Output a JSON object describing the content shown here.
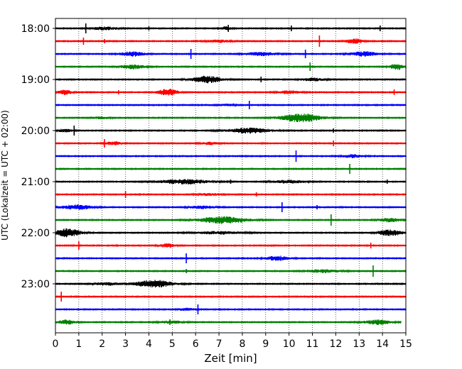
{
  "chart_data": {
    "type": "line",
    "title": "",
    "xlabel": "Zeit  [min]",
    "ylabel": "UTC (Lokalzeit = UTC + 02:00)",
    "xlim": [
      0,
      15
    ],
    "x_ticks": [
      0,
      1,
      2,
      3,
      4,
      5,
      6,
      7,
      8,
      9,
      10,
      11,
      12,
      13,
      14,
      15
    ],
    "x_tick_labels": [
      "0",
      "1",
      "2",
      "3",
      "4",
      "5",
      "6",
      "7",
      "8",
      "9",
      "10",
      "11",
      "12",
      "13",
      "14",
      "15"
    ],
    "y_tick_labels": [
      "18:00",
      "19:00",
      "20:00",
      "21:00",
      "22:00",
      "23:00"
    ],
    "grid": "vertical dotted",
    "colors": [
      "#000000",
      "#ff0000",
      "#0000ff",
      "#008000"
    ],
    "series": [
      {
        "start": "18:00",
        "color": "#000000",
        "end_min": 15,
        "bursts": [
          {
            "at": 2.1,
            "width": 1.6,
            "amp": 0.35
          },
          {
            "at": 7.3,
            "width": 0.6,
            "amp": 0.4
          }
        ],
        "spikes": [
          {
            "at": 1.3,
            "amp": 7
          },
          {
            "at": 4.0,
            "amp": 3
          },
          {
            "at": 7.4,
            "amp": 5
          },
          {
            "at": 10.1,
            "amp": 4
          },
          {
            "at": 13.9,
            "amp": 4
          }
        ]
      },
      {
        "start": "18:15",
        "color": "#ff0000",
        "end_min": 15,
        "bursts": [
          {
            "at": 7.0,
            "width": 1.4,
            "amp": 0.3
          },
          {
            "at": 12.8,
            "width": 1.0,
            "amp": 0.6
          }
        ],
        "spikes": [
          {
            "at": 1.2,
            "amp": 5
          },
          {
            "at": 2.1,
            "amp": 3
          },
          {
            "at": 11.3,
            "amp": 8
          }
        ]
      },
      {
        "start": "18:30",
        "color": "#0000ff",
        "end_min": 15,
        "bursts": [
          {
            "at": 3.3,
            "width": 1.4,
            "amp": 0.55
          },
          {
            "at": 8.8,
            "width": 1.8,
            "amp": 0.45
          },
          {
            "at": 13.2,
            "width": 1.6,
            "amp": 0.55
          }
        ],
        "spikes": [
          {
            "at": 5.8,
            "amp": 7
          },
          {
            "at": 10.7,
            "amp": 6
          }
        ]
      },
      {
        "start": "18:45",
        "color": "#008000",
        "end_min": 15,
        "bursts": [
          {
            "at": 3.3,
            "width": 1.4,
            "amp": 0.5
          },
          {
            "at": 14.6,
            "width": 0.8,
            "amp": 0.7
          }
        ],
        "spikes": [
          {
            "at": 10.9,
            "amp": 6
          }
        ]
      },
      {
        "start": "19:00",
        "color": "#000000",
        "end_min": 15,
        "bursts": [
          {
            "at": 6.5,
            "width": 1.8,
            "amp": 0.8
          },
          {
            "at": 11.0,
            "width": 1.4,
            "amp": 0.35
          }
        ],
        "spikes": [
          {
            "at": 8.8,
            "amp": 4
          }
        ]
      },
      {
        "start": "19:15",
        "color": "#ff0000",
        "end_min": 15,
        "bursts": [
          {
            "at": 0.4,
            "width": 0.8,
            "amp": 0.55
          },
          {
            "at": 4.8,
            "width": 1.2,
            "amp": 0.8
          },
          {
            "at": 10.0,
            "width": 1.4,
            "amp": 0.35
          }
        ],
        "spikes": [
          {
            "at": 2.7,
            "amp": 3
          },
          {
            "at": 14.5,
            "amp": 4
          }
        ]
      },
      {
        "start": "19:30",
        "color": "#0000ff",
        "end_min": 15,
        "bursts": [
          {
            "at": 7.3,
            "width": 1.0,
            "amp": 0.25
          }
        ],
        "spikes": [
          {
            "at": 8.3,
            "amp": 6
          }
        ]
      },
      {
        "start": "19:45",
        "color": "#008000",
        "end_min": 15,
        "bursts": [
          {
            "at": 10.5,
            "width": 2.4,
            "amp": 1.0
          },
          {
            "at": 2.0,
            "width": 1.0,
            "amp": 0.25
          }
        ],
        "spikes": []
      },
      {
        "start": "20:00",
        "color": "#000000",
        "end_min": 15,
        "bursts": [
          {
            "at": 8.3,
            "width": 2.6,
            "amp": 0.6
          },
          {
            "at": 0.4,
            "width": 0.8,
            "amp": 0.4
          }
        ],
        "spikes": [
          {
            "at": 0.8,
            "amp": 7
          },
          {
            "at": 11.9,
            "amp": 3
          }
        ]
      },
      {
        "start": "20:15",
        "color": "#ff0000",
        "end_min": 15,
        "bursts": [
          {
            "at": 2.5,
            "width": 1.0,
            "amp": 0.45
          },
          {
            "at": 6.6,
            "width": 1.0,
            "amp": 0.3
          }
        ],
        "spikes": [
          {
            "at": 2.1,
            "amp": 6
          },
          {
            "at": 11.9,
            "amp": 4
          }
        ]
      },
      {
        "start": "20:30",
        "color": "#0000ff",
        "end_min": 15,
        "bursts": [
          {
            "at": 12.7,
            "width": 1.2,
            "amp": 0.35
          }
        ],
        "spikes": [
          {
            "at": 10.3,
            "amp": 8
          }
        ]
      },
      {
        "start": "20:45",
        "color": "#008000",
        "end_min": 15,
        "bursts": [],
        "spikes": [
          {
            "at": 12.6,
            "amp": 7
          }
        ]
      },
      {
        "start": "21:00",
        "color": "#000000",
        "end_min": 15,
        "bursts": [
          {
            "at": 5.5,
            "width": 3.0,
            "amp": 0.55
          },
          {
            "at": 10.0,
            "width": 2.0,
            "amp": 0.35
          }
        ],
        "spikes": [
          {
            "at": 7.5,
            "amp": 3
          },
          {
            "at": 14.2,
            "amp": 3
          }
        ]
      },
      {
        "start": "21:15",
        "color": "#ff0000",
        "end_min": 15,
        "bursts": [
          {
            "at": 6.6,
            "width": 1.4,
            "amp": 0.25
          }
        ],
        "spikes": [
          {
            "at": 3.0,
            "amp": 5
          },
          {
            "at": 8.6,
            "amp": 3
          }
        ]
      },
      {
        "start": "21:30",
        "color": "#0000ff",
        "end_min": 15,
        "bursts": [
          {
            "at": 0.9,
            "width": 1.8,
            "amp": 0.55
          },
          {
            "at": 6.3,
            "width": 1.6,
            "amp": 0.3
          }
        ],
        "spikes": [
          {
            "at": 9.7,
            "amp": 7
          },
          {
            "at": 11.2,
            "amp": 3
          }
        ]
      },
      {
        "start": "21:45",
        "color": "#008000",
        "end_min": 15,
        "bursts": [
          {
            "at": 7.2,
            "width": 2.8,
            "amp": 0.85
          },
          {
            "at": 14.3,
            "width": 1.2,
            "amp": 0.45
          }
        ],
        "spikes": [
          {
            "at": 11.8,
            "amp": 8
          }
        ]
      },
      {
        "start": "22:00",
        "color": "#000000",
        "end_min": 15,
        "bursts": [
          {
            "at": 0.5,
            "width": 1.6,
            "amp": 0.95
          },
          {
            "at": 14.3,
            "width": 1.4,
            "amp": 0.75
          },
          {
            "at": 7.0,
            "width": 3.0,
            "amp": 0.3
          }
        ],
        "spikes": []
      },
      {
        "start": "22:15",
        "color": "#ff0000",
        "end_min": 15,
        "bursts": [
          {
            "at": 4.8,
            "width": 1.0,
            "amp": 0.45
          }
        ],
        "spikes": [
          {
            "at": 1.0,
            "amp": 6
          },
          {
            "at": 13.5,
            "amp": 4
          }
        ]
      },
      {
        "start": "22:30",
        "color": "#0000ff",
        "end_min": 15,
        "bursts": [
          {
            "at": 9.5,
            "width": 1.4,
            "amp": 0.55
          }
        ],
        "spikes": [
          {
            "at": 5.6,
            "amp": 7
          }
        ]
      },
      {
        "start": "22:45",
        "color": "#008000",
        "end_min": 15,
        "bursts": [
          {
            "at": 11.5,
            "width": 2.0,
            "amp": 0.35
          }
        ],
        "spikes": [
          {
            "at": 5.6,
            "amp": 3
          },
          {
            "at": 13.6,
            "amp": 8
          }
        ]
      },
      {
        "start": "23:00",
        "color": "#000000",
        "end_min": 15,
        "bursts": [
          {
            "at": 4.2,
            "width": 2.2,
            "amp": 0.9
          },
          {
            "at": 2.2,
            "width": 1.4,
            "amp": 0.35
          }
        ],
        "spikes": []
      },
      {
        "start": "23:15",
        "color": "#ff0000",
        "end_min": 15,
        "bursts": [],
        "spikes": [
          {
            "at": 0.25,
            "amp": 7
          }
        ]
      },
      {
        "start": "23:30",
        "color": "#0000ff",
        "end_min": 15,
        "bursts": [
          {
            "at": 5.6,
            "width": 1.0,
            "amp": 0.3
          }
        ],
        "spikes": [
          {
            "at": 6.1,
            "amp": 7
          }
        ]
      },
      {
        "start": "23:45",
        "color": "#008000",
        "end_min": 14.8,
        "bursts": [
          {
            "at": 0.5,
            "width": 1.0,
            "amp": 0.55
          },
          {
            "at": 5.0,
            "width": 1.6,
            "amp": 0.3
          },
          {
            "at": 13.8,
            "width": 1.6,
            "amp": 0.55
          }
        ],
        "spikes": [
          {
            "at": 4.9,
            "amp": 4
          }
        ]
      }
    ]
  }
}
